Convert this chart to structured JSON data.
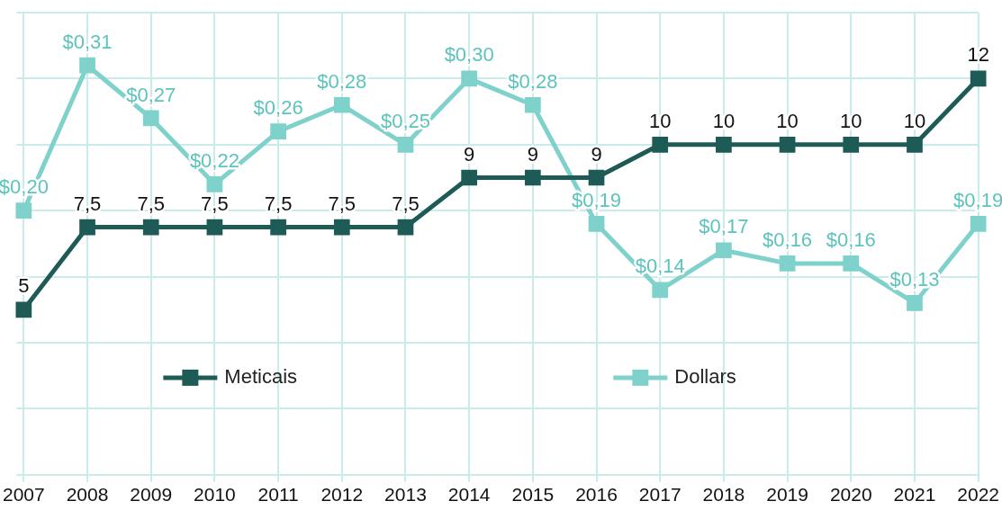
{
  "chart_data": {
    "type": "line",
    "categories": [
      "2007",
      "2008",
      "2009",
      "2010",
      "2011",
      "2012",
      "2013",
      "2014",
      "2015",
      "2016",
      "2017",
      "2018",
      "2019",
      "2020",
      "2021",
      "2022"
    ],
    "series": [
      {
        "name": "Meticais",
        "color": "#1e5b57",
        "values": [
          5,
          7.5,
          7.5,
          7.5,
          7.5,
          7.5,
          7.5,
          9,
          9,
          9,
          10,
          10,
          10,
          10,
          10,
          12
        ],
        "value_labels": [
          "5",
          "7,5",
          "7,5",
          "7,5",
          "7,5",
          "7,5",
          "7,5",
          "9",
          "9",
          "9",
          "10",
          "10",
          "10",
          "10",
          "10",
          "12"
        ]
      },
      {
        "name": "Dollars",
        "color": "#7fd1cc",
        "axis": "y2",
        "values": [
          0.2,
          0.31,
          0.27,
          0.22,
          0.26,
          0.28,
          0.25,
          0.3,
          0.28,
          0.19,
          0.14,
          0.17,
          0.16,
          0.16,
          0.13,
          0.19
        ],
        "value_labels": [
          "$0,20",
          "$0,31",
          "$0,27",
          "$0,22",
          "$0,26",
          "$0,28",
          "$0,25",
          "$0,30",
          "$0,28",
          "$0,19",
          "$0,14",
          "$0,17",
          "$0,16",
          "$0,16",
          "$0,13",
          "$0,19"
        ]
      }
    ],
    "ylim": [
      0,
      14
    ],
    "yticks": [
      {
        "value": 0,
        "label": null
      },
      {
        "value": 2,
        "label": null
      },
      {
        "value": 4,
        "label": null
      },
      {
        "value": 6,
        "label": null
      },
      {
        "value": 8,
        "label": null
      },
      {
        "value": 10,
        "label": null
      },
      {
        "value": 12,
        "label": null
      },
      {
        "value": 14,
        "label": null
      }
    ],
    "y2lim": [
      0,
      0.35
    ],
    "tick_labels": "x",
    "grid": true,
    "legend": "bottom",
    "marker": "square",
    "line_style": "solid"
  }
}
